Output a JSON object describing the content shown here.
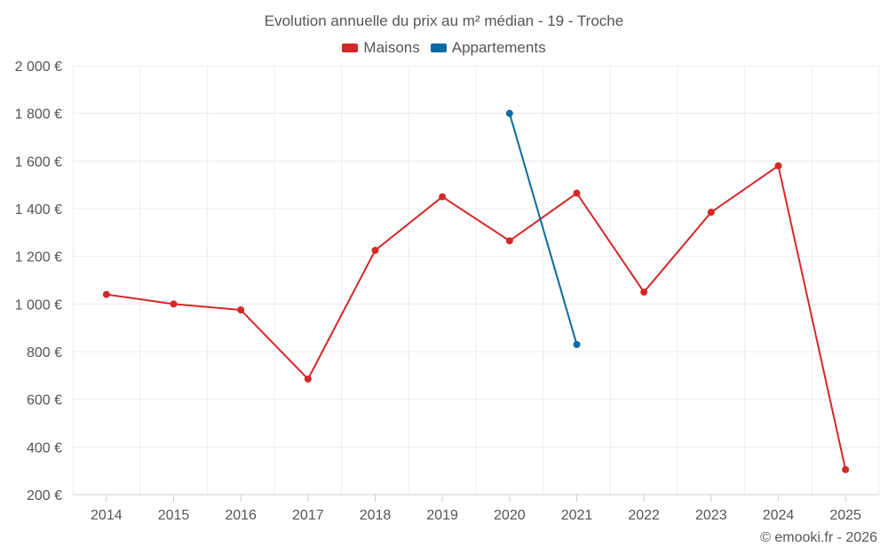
{
  "chart_data": {
    "type": "line",
    "title": "Evolution annuelle du prix au m² médian - 19 - Troche",
    "x": [
      "2014",
      "2015",
      "2016",
      "2017",
      "2018",
      "2019",
      "2020",
      "2021",
      "2022",
      "2023",
      "2024",
      "2025"
    ],
    "series": [
      {
        "name": "Maisons",
        "color": "#d62728",
        "values": [
          1040,
          1000,
          975,
          685,
          1225,
          1450,
          1265,
          1465,
          1050,
          1385,
          1580,
          305
        ]
      },
      {
        "name": "Appartements",
        "color": "#0b6aa2",
        "values": [
          null,
          null,
          null,
          null,
          null,
          null,
          1800,
          830,
          null,
          null,
          null,
          null
        ]
      }
    ],
    "ylim": [
      200,
      2000
    ],
    "yticks": [
      200,
      400,
      600,
      800,
      1000,
      1200,
      1400,
      1600,
      1800,
      2000
    ],
    "ytick_labels": [
      "200 €",
      "400 €",
      "600 €",
      "800 €",
      "1 000 €",
      "1 200 €",
      "1 400 €",
      "1 600 €",
      "1 800 €",
      "2 000 €"
    ],
    "grid": true,
    "legend_position": "top-center"
  },
  "credit": "© emooki.fr - 2026"
}
